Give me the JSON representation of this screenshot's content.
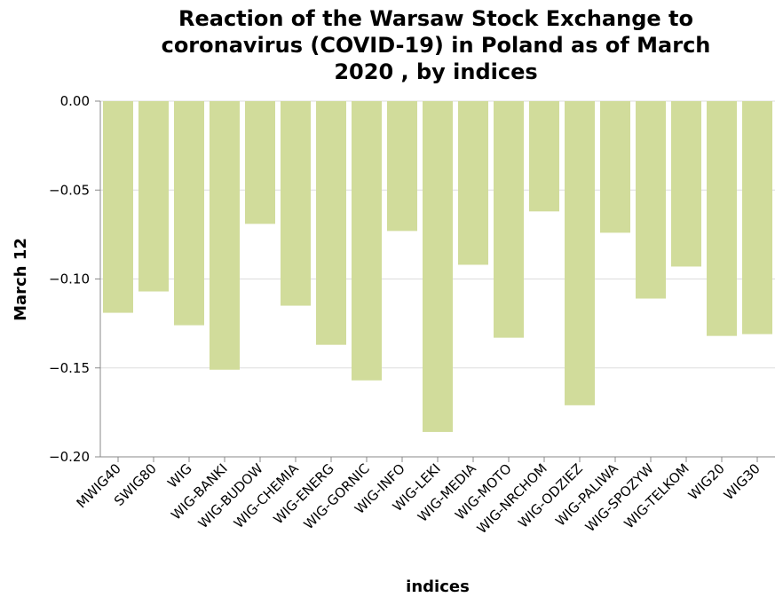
{
  "chart_data": {
    "type": "bar",
    "title": [
      "Reaction of the Warsaw Stock Exchange to",
      "coronavirus (COVID-19) in Poland as of March",
      "2020 , by indices"
    ],
    "xlabel": "indices",
    "ylabel": "March 12",
    "ylim": [
      -0.2,
      0
    ],
    "yticks": [
      "0.00",
      "−0.05",
      "−0.10",
      "−0.15",
      "−0.20"
    ],
    "ytick_values": [
      0,
      -0.05,
      -0.1,
      -0.15,
      -0.2
    ],
    "grid": true,
    "bar_color": "#d1dc9b",
    "categories": [
      "MWIG40",
      "SWIG80",
      "WIG",
      "WIG-BANKI",
      "WIG-BUDOW",
      "WIG-CHEMIA",
      "WIG-ENERG",
      "WIG-GORNIC",
      "WIG-INFO",
      "WIG-LEKI",
      "WIG-MEDIA",
      "WIG-MOTO",
      "WIG-NRCHOM",
      "WIG-ODZIEZ",
      "WIG-PALIWA",
      "WIG-SPOZYW",
      "WIG-TELKOM",
      "WIG20",
      "WIG30"
    ],
    "values": [
      -0.119,
      -0.107,
      -0.126,
      -0.151,
      -0.069,
      -0.115,
      -0.137,
      -0.157,
      -0.073,
      -0.186,
      -0.092,
      -0.133,
      -0.062,
      -0.171,
      -0.074,
      -0.111,
      -0.093,
      -0.132,
      -0.131
    ]
  }
}
